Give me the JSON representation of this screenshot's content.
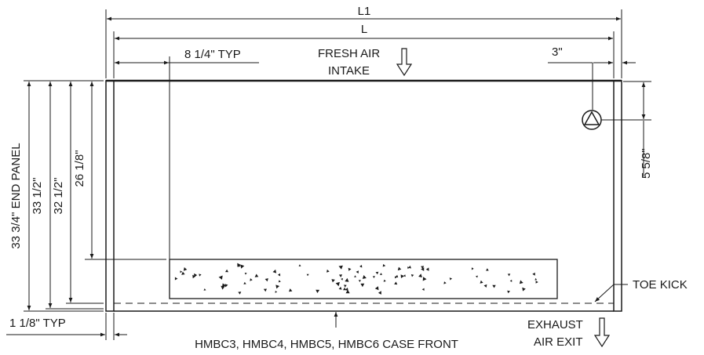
{
  "dimensions": {
    "overall_width": "L1",
    "interior_width": "L",
    "typical_spacing": "8 1/4\" TYP",
    "right_offset": "3\"",
    "end_panel_height": "33 3/4\" END PANEL",
    "height_a": "33 1/2\"",
    "height_b": "32 1/2\"",
    "height_c": "26 1/8\"",
    "symbol_drop": "5 5/8\"",
    "toe_offset": "1 1/8\" TYP"
  },
  "callouts": {
    "fresh_air_line1": "FRESH AIR",
    "fresh_air_line2": "INTAKE",
    "toe_kick": "TOE KICK",
    "exhaust_line1": "EXHAUST",
    "exhaust_line2": "AIR EXIT",
    "case_front": "HMBC3, HMBC4, HMBC5, HMBC6 CASE FRONT"
  },
  "symbols": {
    "connection_marker": "circle-triangle-icon",
    "fresh_air_arrow": "arrow-down-outline-icon",
    "exhaust_arrow": "arrow-down-outline-icon"
  }
}
